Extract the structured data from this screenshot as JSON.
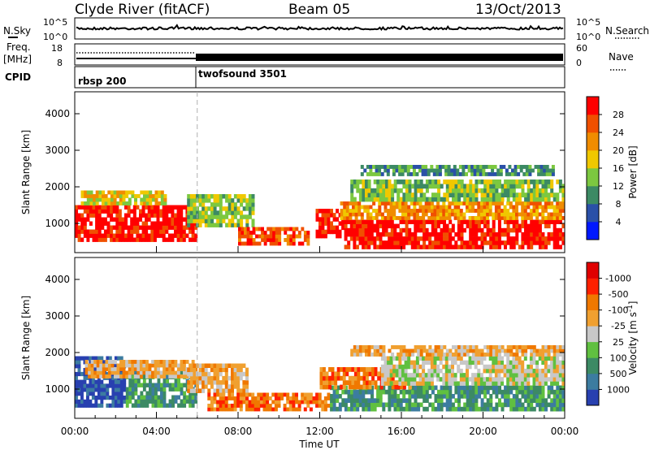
{
  "header": {
    "station": "Clyde River (fitACF)",
    "beam": "Beam 05",
    "date": "13/Oct/2013"
  },
  "nsky_panel": {
    "left_label": "N.Sky",
    "right_label": "N.Search",
    "left_ticks": [
      "10^5",
      "10^0"
    ],
    "right_ticks": [
      "10^5",
      "10^0"
    ],
    "right_line_style": "dotted"
  },
  "freq_panel": {
    "left_label_1": "Freq.",
    "left_label_2": "[MHz]",
    "left_ticks": [
      "18",
      "8"
    ],
    "right_label": "Nave",
    "right_ticks": [
      "60",
      "0"
    ],
    "right_line_style": "dotted"
  },
  "cpid_panel": {
    "label": "CPID",
    "modes": [
      {
        "name": "rbsp 200",
        "start_hour": 0
      },
      {
        "name": "twofsound 3501",
        "start_hour": 6
      }
    ]
  },
  "chart_data": [
    {
      "type": "heatmap",
      "name": "power",
      "ylabel": "Slant Range [km]",
      "y_ticks": [
        "1000",
        "2000",
        "3000",
        "4000"
      ],
      "ylim": [
        200,
        4600
      ],
      "xlim": [
        0,
        24
      ],
      "colorbar": {
        "label": "Power [dB]",
        "ticks": [
          "4",
          "8",
          "12",
          "16",
          "20",
          "24",
          "28"
        ],
        "colors": [
          "#0018ff",
          "#2a50a8",
          "#3c8a64",
          "#7cc840",
          "#f0c800",
          "#f08c00",
          "#f05000",
          "#ff0000"
        ]
      },
      "bands": [
        {
          "t0": 0.0,
          "t1": 6.0,
          "r0": 500,
          "r1": 1500,
          "level": 7
        },
        {
          "t0": 0.3,
          "t1": 4.5,
          "r0": 1500,
          "r1": 1900,
          "level": 4
        },
        {
          "t0": 5.5,
          "t1": 8.8,
          "r0": 900,
          "r1": 1800,
          "level": 3
        },
        {
          "t0": 8.0,
          "t1": 11.5,
          "r0": 400,
          "r1": 900,
          "level": 6
        },
        {
          "t0": 11.8,
          "t1": 13.2,
          "r0": 600,
          "r1": 1400,
          "level": 7
        },
        {
          "t0": 13.2,
          "t1": 24.0,
          "r0": 300,
          "r1": 1100,
          "level": 7
        },
        {
          "t0": 13.0,
          "t1": 24.0,
          "r0": 1100,
          "r1": 1600,
          "level": 5
        },
        {
          "t0": 13.5,
          "t1": 24.0,
          "r0": 1600,
          "r1": 2200,
          "level": 3
        },
        {
          "t0": 14.0,
          "t1": 23.5,
          "r0": 2300,
          "r1": 2600,
          "level": 2
        }
      ]
    },
    {
      "type": "heatmap",
      "name": "velocity",
      "ylabel": "Slant Range [km]",
      "y_ticks": [
        "1000",
        "2000",
        "3000",
        "4000"
      ],
      "ylim": [
        200,
        4600
      ],
      "xlim": [
        0,
        24
      ],
      "x_ticks": [
        "00:00",
        "04:00",
        "08:00",
        "12:00",
        "16:00",
        "20:00",
        "00:00"
      ],
      "xlabel": "Time UT",
      "colorbar": {
        "label": "Velocity [m s^-1]",
        "ticks": [
          "1000",
          "500",
          "100",
          "25",
          "-25",
          "-100",
          "-500",
          "-1000"
        ],
        "colors": [
          "#2840b0",
          "#3c7ca0",
          "#3c8a64",
          "#60c040",
          "#c8c8c8",
          "#f0a030",
          "#f07800",
          "#ff2000",
          "#e00000"
        ]
      },
      "bands": [
        {
          "t0": 0.0,
          "t1": 2.5,
          "r0": 500,
          "r1": 1900,
          "level": 0
        },
        {
          "t0": 2.5,
          "t1": 6.0,
          "r0": 500,
          "r1": 1500,
          "level": 2
        },
        {
          "t0": 0.5,
          "t1": 6.0,
          "r0": 1300,
          "r1": 1800,
          "level": 5
        },
        {
          "t0": 5.5,
          "t1": 8.5,
          "r0": 900,
          "r1": 1700,
          "level": 5
        },
        {
          "t0": 6.5,
          "t1": 12.5,
          "r0": 400,
          "r1": 900,
          "level": 6
        },
        {
          "t0": 12.5,
          "t1": 24.0,
          "r0": 400,
          "r1": 1100,
          "level": 2
        },
        {
          "t0": 12.0,
          "t1": 16.5,
          "r0": 1000,
          "r1": 1600,
          "level": 6
        },
        {
          "t0": 15.0,
          "t1": 24.0,
          "r0": 1100,
          "r1": 1900,
          "level": 4
        },
        {
          "t0": 13.5,
          "t1": 24.0,
          "r0": 1900,
          "r1": 2200,
          "level": 5
        }
      ]
    }
  ]
}
